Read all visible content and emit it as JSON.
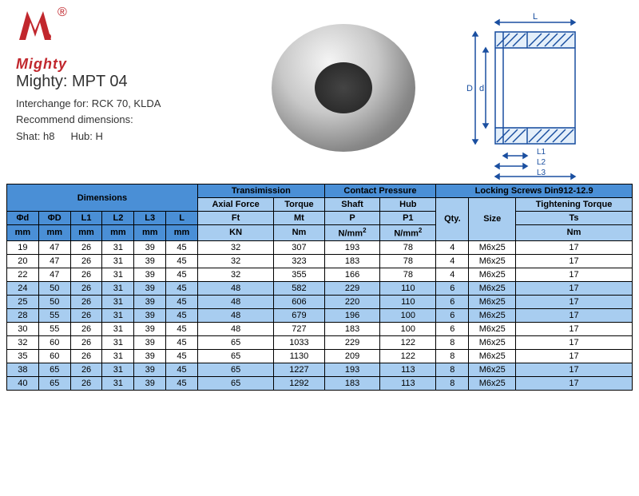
{
  "brand": "Mighty",
  "logo_color": "#c1272d",
  "product_title": "Mighty: MPT 04",
  "interchange_label": "Interchange for:",
  "interchange_value": "RCK 70, KLDA",
  "recommend_label": "Recommend dimensions:",
  "shaft_label": "Shat: h8",
  "hub_label": "Hub: H",
  "drawing_labels": {
    "L": "L",
    "D": "D",
    "d": "d",
    "L1": "L1",
    "L2": "L2",
    "L3": "L3"
  },
  "table": {
    "header_groups": {
      "dimensions": "Dimensions",
      "transmission": "Transimission",
      "contact_pressure": "Contact Pressure",
      "locking_screws": "Locking Screws Din912-12.9",
      "axial_force": "Axial Force",
      "torque": "Torque",
      "shaft": "Shaft",
      "hub": "Hub",
      "tightening_torque": "Tightening Torque",
      "qty": "Qty.",
      "size": "Size"
    },
    "symbols": {
      "phi_d": "Φd",
      "phi_D": "ΦD",
      "L1": "L1",
      "L2": "L2",
      "L3": "L3",
      "L": "L",
      "Ft": "Ft",
      "Mt": "Mt",
      "P": "P",
      "P1": "P1",
      "Ts": "Ts"
    },
    "units": {
      "mm": "mm",
      "KN": "KN",
      "Nm": "Nm",
      "Nmm2": "N/mm"
    },
    "rows": [
      {
        "d": "19",
        "D": "47",
        "L1": "26",
        "L2": "31",
        "L3": "39",
        "L": "45",
        "Ft": "32",
        "Mt": "307",
        "P": "193",
        "P1": "78",
        "Qty": "4",
        "Size": "M6x25",
        "Ts": "17",
        "shade": "white"
      },
      {
        "d": "20",
        "D": "47",
        "L1": "26",
        "L2": "31",
        "L3": "39",
        "L": "45",
        "Ft": "32",
        "Mt": "323",
        "P": "183",
        "P1": "78",
        "Qty": "4",
        "Size": "M6x25",
        "Ts": "17",
        "shade": "white"
      },
      {
        "d": "22",
        "D": "47",
        "L1": "26",
        "L2": "31",
        "L3": "39",
        "L": "45",
        "Ft": "32",
        "Mt": "355",
        "P": "166",
        "P1": "78",
        "Qty": "4",
        "Size": "M6x25",
        "Ts": "17",
        "shade": "white"
      },
      {
        "d": "24",
        "D": "50",
        "L1": "26",
        "L2": "31",
        "L3": "39",
        "L": "45",
        "Ft": "48",
        "Mt": "582",
        "P": "229",
        "P1": "110",
        "Qty": "6",
        "Size": "M6x25",
        "Ts": "17",
        "shade": "lightblue"
      },
      {
        "d": "25",
        "D": "50",
        "L1": "26",
        "L2": "31",
        "L3": "39",
        "L": "45",
        "Ft": "48",
        "Mt": "606",
        "P": "220",
        "P1": "110",
        "Qty": "6",
        "Size": "M6x25",
        "Ts": "17",
        "shade": "lightblue"
      },
      {
        "d": "28",
        "D": "55",
        "L1": "26",
        "L2": "31",
        "L3": "39",
        "L": "45",
        "Ft": "48",
        "Mt": "679",
        "P": "196",
        "P1": "100",
        "Qty": "6",
        "Size": "M6x25",
        "Ts": "17",
        "shade": "lightblue"
      },
      {
        "d": "30",
        "D": "55",
        "L1": "26",
        "L2": "31",
        "L3": "39",
        "L": "45",
        "Ft": "48",
        "Mt": "727",
        "P": "183",
        "P1": "100",
        "Qty": "6",
        "Size": "M6x25",
        "Ts": "17",
        "shade": "white"
      },
      {
        "d": "32",
        "D": "60",
        "L1": "26",
        "L2": "31",
        "L3": "39",
        "L": "45",
        "Ft": "65",
        "Mt": "1033",
        "P": "229",
        "P1": "122",
        "Qty": "8",
        "Size": "M6x25",
        "Ts": "17",
        "shade": "white"
      },
      {
        "d": "35",
        "D": "60",
        "L1": "26",
        "L2": "31",
        "L3": "39",
        "L": "45",
        "Ft": "65",
        "Mt": "1130",
        "P": "209",
        "P1": "122",
        "Qty": "8",
        "Size": "M6x25",
        "Ts": "17",
        "shade": "white"
      },
      {
        "d": "38",
        "D": "65",
        "L1": "26",
        "L2": "31",
        "L3": "39",
        "L": "45",
        "Ft": "65",
        "Mt": "1227",
        "P": "193",
        "P1": "113",
        "Qty": "8",
        "Size": "M6x25",
        "Ts": "17",
        "shade": "lightblue"
      },
      {
        "d": "40",
        "D": "65",
        "L1": "26",
        "L2": "31",
        "L3": "39",
        "L": "45",
        "Ft": "65",
        "Mt": "1292",
        "P": "183",
        "P1": "113",
        "Qty": "8",
        "Size": "M6x25",
        "Ts": "17",
        "shade": "lightblue"
      }
    ]
  },
  "colors": {
    "header_blue": "#4a8fd6",
    "header_lightblue": "#a8cdf0",
    "row_white": "#ffffff",
    "row_lightblue": "#a8cdf0",
    "drawing_line": "#1a4fa0"
  }
}
